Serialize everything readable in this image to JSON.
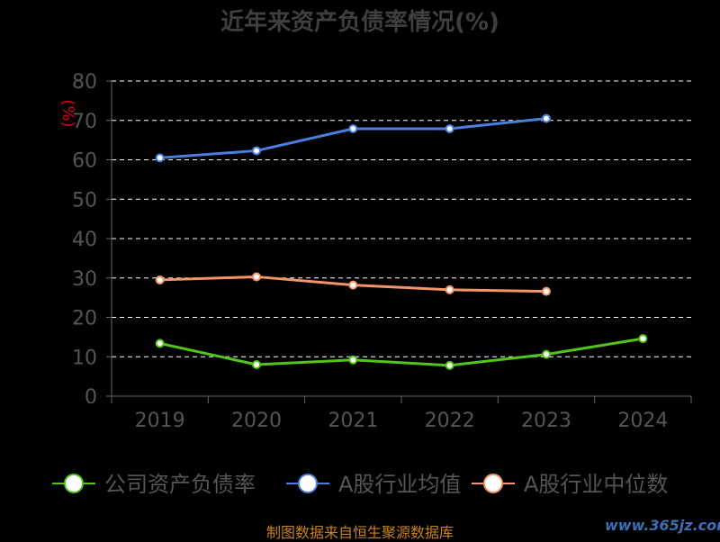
{
  "chart_data": {
    "type": "line",
    "title": "近年来资产负债率情况(%)",
    "ylabel": "(%)",
    "categories": [
      "2019",
      "2020",
      "2021",
      "2022",
      "2023",
      "2024"
    ],
    "ylim": [
      0,
      80
    ],
    "yticks": [
      0,
      10,
      20,
      30,
      40,
      50,
      60,
      70,
      80
    ],
    "grid": true,
    "legend_position": "bottom",
    "series": [
      {
        "name": "公司资产负债率",
        "color": "#52c41a",
        "values": [
          13.4,
          8.0,
          9.2,
          7.8,
          10.6,
          14.6
        ]
      },
      {
        "name": "A股行业均值",
        "color": "#4a7fe0",
        "values": [
          60.5,
          62.3,
          67.9,
          67.9,
          70.5,
          null
        ]
      },
      {
        "name": "A股行业中位数",
        "color": "#f39568",
        "values": [
          29.5,
          30.3,
          28.2,
          27.0,
          26.6,
          null
        ]
      }
    ]
  },
  "footer": "制图数据来自恒生聚源数据库",
  "watermark": "www.365jz.com"
}
